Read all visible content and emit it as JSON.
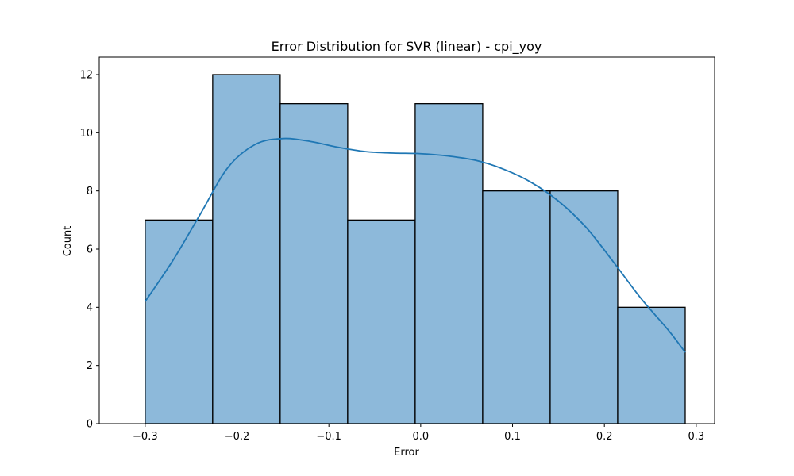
{
  "chart_data": {
    "type": "bar",
    "subtype": "histogram_with_kde",
    "title": "Error Distribution for SVR (linear) - cpi_yoy",
    "xlabel": "Error",
    "ylabel": "Count",
    "xlim": [
      -0.35,
      0.32
    ],
    "ylim": [
      0,
      12.6
    ],
    "xticks": [
      -0.3,
      -0.2,
      -0.1,
      0.0,
      0.1,
      0.2,
      0.3
    ],
    "xtick_labels": [
      "−0.3",
      "−0.2",
      "−0.1",
      "0.0",
      "0.1",
      "0.2",
      "0.3"
    ],
    "yticks": [
      0,
      2,
      4,
      6,
      8,
      10,
      12
    ],
    "ytick_labels": [
      "0",
      "2",
      "4",
      "6",
      "8",
      "10",
      "12"
    ],
    "bins": [
      {
        "x0": -0.3,
        "x1": -0.2265,
        "count": 7
      },
      {
        "x0": -0.2265,
        "x1": -0.153,
        "count": 12
      },
      {
        "x0": -0.153,
        "x1": -0.0795,
        "count": 11
      },
      {
        "x0": -0.0795,
        "x1": -0.006,
        "count": 7
      },
      {
        "x0": -0.006,
        "x1": 0.0675,
        "count": 11
      },
      {
        "x0": 0.0675,
        "x1": 0.141,
        "count": 8
      },
      {
        "x0": 0.141,
        "x1": 0.2145,
        "count": 8
      },
      {
        "x0": 0.2145,
        "x1": 0.288,
        "count": 4
      }
    ],
    "kde": {
      "x": [
        -0.3,
        -0.27,
        -0.24,
        -0.21,
        -0.18,
        -0.15,
        -0.12,
        -0.09,
        -0.06,
        -0.03,
        0.0,
        0.03,
        0.06,
        0.09,
        0.12,
        0.15,
        0.18,
        0.21,
        0.24,
        0.27,
        0.288
      ],
      "y": [
        4.2,
        5.6,
        7.2,
        8.8,
        9.6,
        9.8,
        9.7,
        9.5,
        9.35,
        9.3,
        9.28,
        9.2,
        9.05,
        8.75,
        8.3,
        7.65,
        6.75,
        5.55,
        4.3,
        3.2,
        2.45
      ]
    },
    "colors": {
      "bar_fill": "#8db9da",
      "bar_edge": "#000000",
      "kde_line": "#1f77b4"
    },
    "grid": false,
    "legend": "none"
  }
}
